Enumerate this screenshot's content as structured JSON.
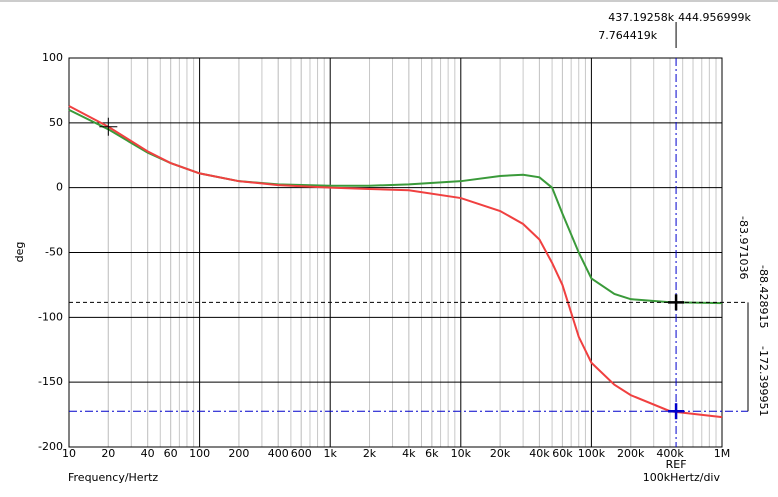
{
  "chart_data": {
    "type": "line",
    "y_label": "deg",
    "x_label": "Frequency/Hertz",
    "x_scale_label": "100kHertz/div",
    "ref_label": "REF",
    "log_x": true,
    "grid": true,
    "xlim": [
      10,
      1000000
    ],
    "ylim": [
      -200,
      100
    ],
    "xticks": [
      10,
      20,
      40,
      60,
      100,
      200,
      400,
      600,
      {
        "value": 1000,
        "label": "1k"
      },
      {
        "value": 2000,
        "label": "2k"
      },
      {
        "value": 4000,
        "label": "4k"
      },
      {
        "value": 6000,
        "label": "6k"
      },
      {
        "value": 10000,
        "label": "10k"
      },
      {
        "value": 20000,
        "label": "20k"
      },
      {
        "value": 40000,
        "label": "40k"
      },
      {
        "value": 60000,
        "label": "60k"
      },
      {
        "value": 100000,
        "label": "100k"
      },
      {
        "value": 200000,
        "label": "200k"
      },
      {
        "value": 400000,
        "label": "400k"
      },
      {
        "value": 1000000,
        "label": "1M"
      }
    ],
    "yticks": [
      100,
      50,
      0,
      -50,
      -100,
      -150,
      -200
    ],
    "x": [
      10,
      20,
      40,
      60,
      100,
      200,
      400,
      1000,
      2000,
      4000,
      10000,
      20000,
      30000,
      40000,
      50000,
      60000,
      80000,
      100000,
      150000,
      200000,
      400000,
      1000000
    ],
    "series": [
      {
        "color": "#3a9a3a",
        "values": [
          60,
          45,
          27,
          19,
          11,
          5,
          2.5,
          1.5,
          1.5,
          2.5,
          5,
          9,
          10,
          8,
          0,
          -20,
          -50,
          -70,
          -82,
          -86,
          -88.4,
          -89
        ]
      },
      {
        "color": "#f04040",
        "values": [
          63,
          47,
          28,
          19,
          11,
          5,
          2,
          0,
          -1,
          -2,
          -8,
          -18,
          -28,
          -40,
          -58,
          -75,
          -115,
          -135,
          -152,
          -160,
          -172.4,
          -177
        ]
      }
    ],
    "cursor": {
      "x": {
        "value": 444956.999,
        "label": "444.956999k"
      },
      "ref_x": {
        "value": 437192.58,
        "label": "437.19258k"
      },
      "delta_x": {
        "value": 7764.419,
        "label": "7.764419k"
      },
      "y1": -88.428915,
      "y2": -172.399951,
      "delta_y": -83.971036
    }
  }
}
